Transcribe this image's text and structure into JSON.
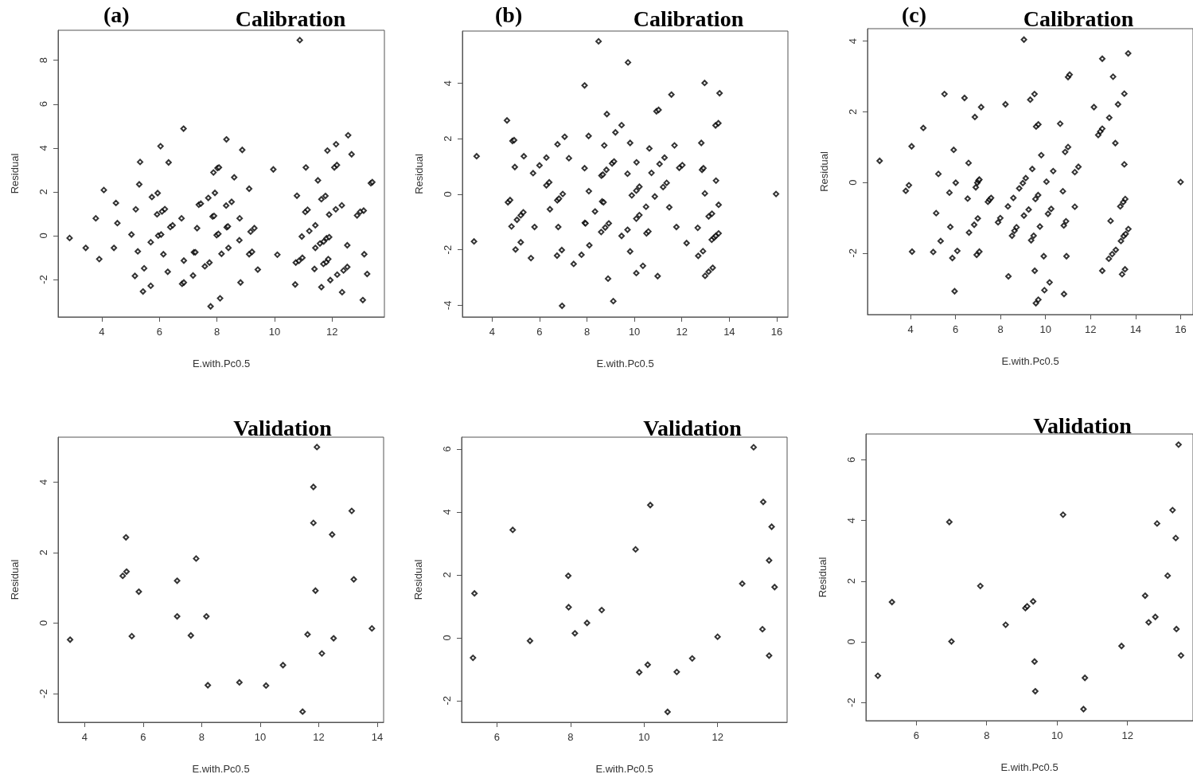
{
  "chart_data": [
    {
      "type": "scatter",
      "title": "Calibration",
      "annotations": [
        "(a)"
      ],
      "xlabel": "E.with.Pc0.5",
      "ylabel": "Residual",
      "color": "#000000",
      "marker": "diamond",
      "xlim": [
        2.48,
        13.82
      ],
      "ylim": [
        -3.71,
        9.37
      ],
      "xticks": [
        4,
        6,
        8,
        10,
        12
      ],
      "yticks": [
        -2,
        0,
        2,
        4,
        6,
        8
      ],
      "x": [
        2.88,
        3.44,
        3.79,
        3.91,
        4.07,
        4.42,
        4.49,
        4.54,
        5.03,
        5.15,
        5.18,
        5.25,
        5.3,
        5.33,
        5.43,
        5.47,
        5.7,
        5.7,
        5.74,
        5.92,
        5.94,
        5.96,
        6.04,
        6.06,
        6.09,
        6.14,
        6.19,
        6.29,
        6.32,
        6.38,
        6.46,
        6.77,
        6.79,
        6.85,
        6.84,
        6.85,
        7.17,
        7.2,
        7.25,
        7.31,
        7.37,
        7.44,
        7.58,
        7.7,
        7.74,
        7.78,
        7.85,
        7.88,
        7.9,
        7.93,
        7.99,
        8.05,
        8.02,
        8.07,
        8.11,
        8.16,
        8.32,
        8.33,
        8.34,
        8.38,
        8.4,
        8.51,
        8.6,
        8.78,
        8.79,
        8.82,
        8.88,
        9.12,
        9.12,
        9.17,
        9.22,
        9.3,
        9.42,
        9.96,
        10.1,
        10.72,
        10.74,
        10.78,
        10.85,
        10.88,
        10.95,
        10.97,
        11.07,
        11.09,
        11.15,
        11.21,
        11.39,
        11.42,
        11.42,
        11.51,
        11.58,
        11.63,
        11.63,
        11.7,
        11.71,
        11.77,
        11.8,
        11.81,
        11.84,
        11.87,
        11.9,
        11.9,
        11.94,
        12.08,
        12.13,
        12.14,
        12.17,
        12.18,
        12.34,
        12.35,
        12.4,
        12.53,
        12.53,
        12.56,
        12.68,
        12.87,
        12.98,
        13.07,
        13.1,
        13.12,
        13.22,
        13.35,
        13.4
      ],
      "values": [
        -0.11,
        -0.56,
        0.79,
        -1.07,
        2.08,
        -0.56,
        1.49,
        0.57,
        0.05,
        -1.84,
        1.2,
        -0.72,
        2.34,
        3.36,
        -2.55,
        -1.49,
        -0.3,
        -2.29,
        1.76,
        0.97,
        1.94,
        0.0,
        4.08,
        0.05,
        1.1,
        -0.85,
        1.21,
        -1.65,
        3.34,
        0.39,
        0.47,
        0.79,
        -2.2,
        -2.14,
        4.88,
        -1.14,
        -1.82,
        -0.76,
        -0.76,
        0.34,
        1.41,
        1.46,
        -1.4,
        1.72,
        -1.23,
        -3.23,
        0.87,
        2.88,
        0.9,
        1.95,
        0.02,
        0.08,
        3.08,
        3.11,
        -2.86,
        -0.83,
        1.37,
        4.39,
        0.38,
        0.42,
        -0.56,
        1.54,
        2.66,
        -0.21,
        0.79,
        -2.14,
        3.91,
        2.14,
        -0.85,
        0.18,
        -0.74,
        0.34,
        -1.55,
        3.02,
        -0.87,
        -2.23,
        -1.23,
        1.82,
        -1.15,
        8.92,
        -0.04,
        -1.01,
        1.08,
        3.11,
        1.18,
        0.21,
        -1.52,
        0.47,
        -0.56,
        2.52,
        -0.36,
        -2.35,
        1.66,
        -1.29,
        -0.27,
        1.81,
        -1.21,
        -0.12,
        3.88,
        -1.07,
        -0.07,
        0.96,
        -2.03,
        3.11,
        1.2,
        4.17,
        3.22,
        -1.78,
        1.38,
        -2.58,
        -1.59,
        -0.44,
        -1.43,
        4.58,
        3.71,
        0.92,
        1.09,
        -2.94,
        1.14,
        -0.85,
        -1.75,
        2.39,
        2.44
      ]
    },
    {
      "type": "scatter",
      "title": "Calibration",
      "annotations": [
        "(b)"
      ],
      "xlabel": "E.with.Pc0.5",
      "ylabel": "Residual",
      "color": "#000000",
      "marker": "diamond",
      "xlim": [
        2.75,
        16.47
      ],
      "ylim": [
        -4.42,
        5.88
      ],
      "xticks": [
        4,
        6,
        8,
        10,
        12,
        14,
        16
      ],
      "yticks": [
        -4,
        -2,
        0,
        2,
        4
      ],
      "x": [
        3.24,
        3.35,
        4.63,
        4.67,
        4.76,
        4.82,
        4.86,
        4.93,
        4.96,
        4.99,
        5.05,
        5.21,
        5.21,
        5.32,
        5.34,
        5.64,
        5.73,
        5.79,
        6.0,
        6.29,
        6.29,
        6.41,
        6.44,
        6.74,
        6.75,
        6.76,
        6.79,
        6.82,
        6.94,
        6.95,
        6.98,
        7.06,
        7.24,
        7.44,
        7.77,
        7.9,
        7.9,
        7.91,
        7.94,
        8.07,
        8.08,
        8.1,
        8.34,
        8.49,
        8.6,
        8.61,
        8.64,
        8.67,
        8.7,
        8.73,
        8.77,
        8.82,
        8.84,
        8.89,
        8.92,
        9.06,
        9.11,
        9.14,
        9.2,
        9.46,
        9.46,
        9.71,
        9.71,
        9.73,
        9.82,
        9.82,
        9.89,
        10.08,
        10.08,
        10.08,
        10.09,
        10.21,
        10.21,
        10.36,
        10.49,
        10.51,
        10.59,
        10.63,
        10.72,
        10.86,
        10.93,
        10.98,
        11.02,
        11.06,
        11.21,
        11.27,
        11.36,
        11.47,
        11.56,
        11.69,
        11.77,
        11.89,
        12.02,
        12.2,
        12.67,
        12.69,
        12.82,
        12.85,
        12.89,
        12.91,
        12.96,
        12.97,
        12.98,
        13.13,
        13.13,
        13.26,
        13.27,
        13.3,
        13.36,
        13.42,
        13.44,
        13.43,
        13.54,
        13.55,
        13.55,
        13.59,
        15.97
      ],
      "values": [
        -1.7,
        1.37,
        2.66,
        -0.29,
        -0.21,
        -1.16,
        1.92,
        1.95,
        0.98,
        -1.99,
        -0.92,
        -1.73,
        -0.76,
        -0.65,
        1.37,
        -2.3,
        0.76,
        -1.18,
        1.04,
        1.32,
        0.32,
        0.43,
        -0.54,
        -2.21,
        -0.22,
        1.8,
        -1.18,
        -0.16,
        -2.01,
        -4.02,
        0.01,
        2.07,
        1.3,
        -2.51,
        -2.18,
        0.94,
        3.92,
        -1.03,
        -1.05,
        2.1,
        0.11,
        -1.84,
        -0.62,
        5.51,
        -1.36,
        0.67,
        -0.26,
        0.71,
        -0.29,
        1.76,
        -1.2,
        0.88,
        2.89,
        -3.04,
        -1.05,
        1.11,
        -3.85,
        1.18,
        2.23,
        2.49,
        -1.5,
        0.74,
        -1.28,
        4.75,
        1.85,
        -2.06,
        -0.04,
        0.13,
        -2.84,
        -0.88,
        1.15,
        0.27,
        -0.75,
        -2.58,
        -0.45,
        -1.41,
        -1.34,
        1.65,
        0.77,
        -0.08,
        2.99,
        -2.95,
        3.04,
        1.09,
        0.26,
        1.32,
        0.41,
        -0.47,
        3.59,
        1.76,
        -1.18,
        0.95,
        1.05,
        -1.76,
        -1.21,
        -2.22,
        1.85,
        0.88,
        -2.05,
        0.94,
        4.01,
        0.03,
        -2.94,
        -0.8,
        -2.79,
        -1.64,
        -0.7,
        -2.65,
        -1.56,
        2.48,
        0.49,
        -1.5,
        2.56,
        -0.38,
        -1.41,
        3.64,
        0.01
      ]
    },
    {
      "type": "scatter",
      "title": "Calibration",
      "annotations": [
        "(c)"
      ],
      "xlabel": "E.with.Pc0.5",
      "ylabel": "Residual",
      "color": "#000000",
      "marker": "diamond",
      "xlim": [
        2.09,
        16.55
      ],
      "ylim": [
        -3.74,
        4.35
      ],
      "xticks": [
        4,
        6,
        8,
        10,
        12,
        14,
        16
      ],
      "yticks": [
        -2,
        0,
        2,
        4
      ],
      "x": [
        2.63,
        3.79,
        3.93,
        4.05,
        4.07,
        4.57,
        5.01,
        5.14,
        5.24,
        5.34,
        5.51,
        5.73,
        5.77,
        5.86,
        5.92,
        5.96,
        6.01,
        6.08,
        6.4,
        6.54,
        6.58,
        6.6,
        6.83,
        6.86,
        6.9,
        6.94,
        6.97,
        6.99,
        7.02,
        7.06,
        7.06,
        7.14,
        7.44,
        7.51,
        7.58,
        7.89,
        7.99,
        8.22,
        8.33,
        8.35,
        8.51,
        8.57,
        8.62,
        8.71,
        8.83,
        8.99,
        9.04,
        9.04,
        9.12,
        9.25,
        9.32,
        9.36,
        9.41,
        9.47,
        9.51,
        9.52,
        9.55,
        9.57,
        9.58,
        9.67,
        9.68,
        9.68,
        9.75,
        9.81,
        9.92,
        9.95,
        10.04,
        10.11,
        10.18,
        10.25,
        10.34,
        10.65,
        10.77,
        10.81,
        10.82,
        10.87,
        10.91,
        10.93,
        11.0,
        11.0,
        11.07,
        11.3,
        11.3,
        11.46,
        12.15,
        12.34,
        12.43,
        12.52,
        12.52,
        12.52,
        12.81,
        12.83,
        12.89,
        12.96,
        13.0,
        13.1,
        13.12,
        13.22,
        13.32,
        13.35,
        13.4,
        13.45,
        13.47,
        13.5,
        13.5,
        13.53,
        13.54,
        13.56,
        13.67,
        13.68,
        16.0
      ],
      "values": [
        0.61,
        -0.24,
        -0.08,
        1.02,
        -1.96,
        1.54,
        -1.97,
        -0.87,
        0.24,
        -1.66,
        2.5,
        -0.29,
        -1.26,
        -2.14,
        0.92,
        -3.08,
        -0.01,
        -1.94,
        2.39,
        -0.46,
        0.55,
        -1.42,
        -1.2,
        1.85,
        -0.14,
        -2.05,
        -0.01,
        -1.02,
        0.05,
        0.08,
        -1.96,
        2.13,
        -0.55,
        -0.49,
        -0.44,
        -1.13,
        -1.01,
        2.21,
        -0.68,
        -2.66,
        -1.51,
        -0.44,
        -1.37,
        -1.27,
        -0.17,
        -0.02,
        -0.94,
        4.04,
        0.12,
        -0.77,
        2.34,
        -1.64,
        0.38,
        -1.51,
        2.5,
        -2.5,
        -0.47,
        -3.42,
        1.58,
        -0.36,
        -3.32,
        1.64,
        -1.25,
        0.77,
        -2.09,
        -3.05,
        0.02,
        -0.89,
        -2.83,
        -0.75,
        0.32,
        1.66,
        -0.25,
        -1.22,
        -3.16,
        0.86,
        -1.1,
        -2.09,
        1.0,
        2.98,
        3.05,
        0.29,
        -0.69,
        0.44,
        2.13,
        1.34,
        1.44,
        3.5,
        1.52,
        -2.5,
        -2.16,
        1.83,
        -1.09,
        -2.03,
        2.99,
        1.11,
        -1.91,
        2.21,
        -0.68,
        -1.66,
        -2.6,
        -0.56,
        -1.52,
        2.51,
        0.51,
        -2.46,
        -0.47,
        -1.46,
        3.65,
        -1.32,
        0.01
      ]
    },
    {
      "type": "scatter",
      "title": "Validation",
      "xlabel": "E.with.Pc0.5",
      "ylabel": "Residual",
      "color": "#000000",
      "marker": "diamond",
      "xlim": [
        3.09,
        14.22
      ],
      "ylim": [
        -2.81,
        5.27
      ],
      "xticks": [
        4,
        6,
        8,
        10,
        12,
        14
      ],
      "yticks": [
        -2,
        0,
        2,
        4
      ],
      "x": [
        3.5,
        5.3,
        5.41,
        5.43,
        5.61,
        5.85,
        7.16,
        7.16,
        7.63,
        7.81,
        8.16,
        8.21,
        9.29,
        10.2,
        10.78,
        11.45,
        11.62,
        11.82,
        11.82,
        11.89,
        11.94,
        12.11,
        12.46,
        12.51,
        13.13,
        13.2,
        13.82
      ],
      "values": [
        -0.47,
        1.34,
        2.43,
        1.46,
        -0.37,
        0.89,
        1.2,
        0.19,
        -0.35,
        1.83,
        0.19,
        -1.76,
        -1.68,
        -1.77,
        -1.19,
        -2.51,
        -0.32,
        3.86,
        2.84,
        0.92,
        4.99,
        -0.86,
        2.51,
        -0.43,
        3.18,
        1.24,
        -0.15
      ]
    },
    {
      "type": "scatter",
      "title": "Validation",
      "xlabel": "E.with.Pc0.5",
      "ylabel": "Residual",
      "color": "#000000",
      "marker": "diamond",
      "xlim": [
        5.04,
        13.89
      ],
      "ylim": [
        -2.69,
        6.38
      ],
      "xticks": [
        6,
        8,
        10,
        12
      ],
      "yticks": [
        -2,
        0,
        2,
        4,
        6
      ],
      "x": [
        5.35,
        5.39,
        6.43,
        6.9,
        7.94,
        7.95,
        8.12,
        8.45,
        8.85,
        9.77,
        9.87,
        10.1,
        10.17,
        10.64,
        10.89,
        11.31,
        12.0,
        12.67,
        12.98,
        13.22,
        13.24,
        13.4,
        13.4,
        13.47,
        13.55
      ],
      "values": [
        -0.64,
        1.41,
        3.43,
        -0.1,
        1.97,
        0.97,
        0.14,
        0.47,
        0.88,
        2.81,
        -1.1,
        -0.86,
        4.22,
        -2.36,
        -1.09,
        -0.66,
        0.03,
        1.72,
        6.06,
        0.27,
        4.32,
        2.46,
        -0.57,
        3.53,
        1.61
      ]
    },
    {
      "type": "scatter",
      "title": "Validation",
      "xlabel": "E.with.Pc0.5",
      "ylabel": "Residual",
      "color": "#000000",
      "marker": "diamond",
      "xlim": [
        4.57,
        13.86
      ],
      "ylim": [
        -2.6,
        6.85
      ],
      "xticks": [
        6,
        8,
        10,
        12
      ],
      "yticks": [
        -2,
        0,
        2,
        4,
        6
      ],
      "x": [
        4.91,
        5.31,
        6.94,
        7.0,
        7.82,
        8.54,
        9.1,
        9.15,
        9.32,
        9.36,
        9.38,
        10.17,
        10.75,
        10.79,
        11.83,
        12.5,
        12.6,
        12.79,
        12.84,
        13.14,
        13.28,
        13.37,
        13.39,
        13.45,
        13.52
      ],
      "values": [
        -1.12,
        1.31,
        3.95,
        0.01,
        1.84,
        0.56,
        1.11,
        1.17,
        1.33,
        -0.65,
        -1.63,
        4.19,
        -2.22,
        -1.19,
        -0.14,
        1.52,
        0.64,
        0.82,
        3.9,
        2.18,
        4.34,
        3.42,
        0.42,
        6.5,
        -0.45
      ]
    }
  ]
}
